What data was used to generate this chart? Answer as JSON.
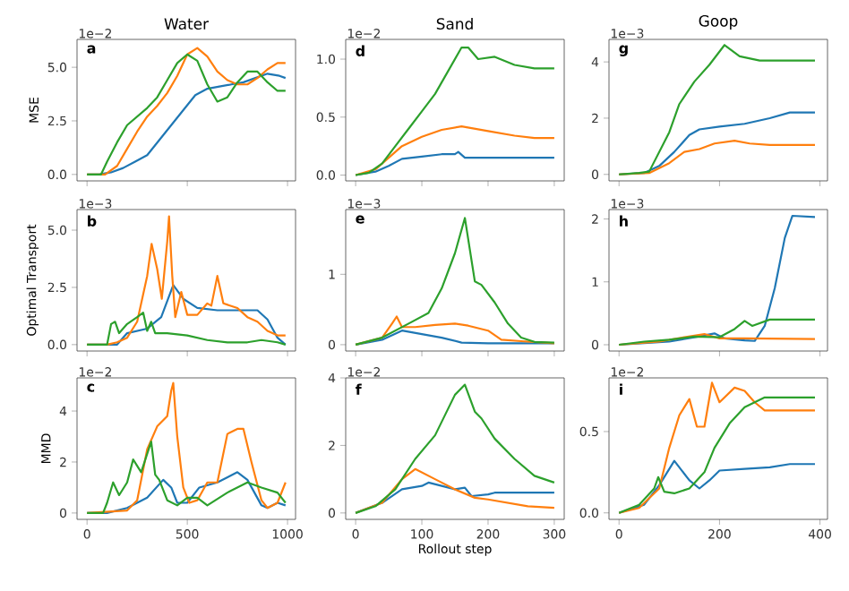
{
  "chart_data": [
    {
      "type": "line",
      "title": "Water",
      "ylabel": "MSE",
      "xlim": [
        -50,
        1040
      ],
      "ylim": [
        -0.3,
        6.3
      ],
      "xticks": [
        0,
        500,
        1000
      ],
      "yticks": [
        {
          "value": 0,
          "label": "0.0"
        },
        {
          "value": 2.5,
          "label": "2.5"
        },
        {
          "value": 5,
          "label": "5.0"
        }
      ],
      "tick_labels": "y",
      "annotations": [
        "a",
        "1e−2"
      ],
      "series": [
        {
          "color": "#1f77b4",
          "x": [
            0,
            60,
            120,
            180,
            240,
            300,
            360,
            420,
            480,
            540,
            600,
            660,
            720,
            780,
            840,
            900,
            960,
            990
          ],
          "values": [
            0,
            0,
            0.1,
            0.3,
            0.6,
            0.9,
            1.6,
            2.3,
            3.0,
            3.7,
            4.0,
            4.1,
            4.2,
            4.3,
            4.5,
            4.7,
            4.6,
            4.5
          ]
        },
        {
          "color": "#ff7f0e",
          "x": [
            0,
            90,
            150,
            200,
            250,
            300,
            350,
            400,
            450,
            500,
            550,
            600,
            650,
            700,
            750,
            800,
            850,
            900,
            950,
            990
          ],
          "values": [
            0,
            0,
            0.4,
            1.2,
            2.0,
            2.7,
            3.2,
            3.8,
            4.6,
            5.6,
            5.9,
            5.5,
            4.8,
            4.4,
            4.2,
            4.2,
            4.5,
            4.9,
            5.2,
            5.2
          ]
        },
        {
          "color": "#2ca02c",
          "x": [
            0,
            70,
            100,
            150,
            200,
            250,
            300,
            350,
            400,
            450,
            500,
            550,
            600,
            650,
            700,
            750,
            800,
            850,
            900,
            950,
            990
          ],
          "values": [
            0,
            0,
            0.6,
            1.5,
            2.3,
            2.7,
            3.1,
            3.6,
            4.4,
            5.2,
            5.6,
            5.3,
            4.2,
            3.4,
            3.6,
            4.3,
            4.8,
            4.8,
            4.3,
            3.9,
            3.9
          ]
        }
      ]
    },
    {
      "type": "line",
      "title": "Sand",
      "xlim": [
        -15,
        315
      ],
      "ylim": [
        -0.05,
        1.17
      ],
      "xticks": [
        0,
        100,
        200,
        300
      ],
      "yticks": [
        {
          "value": 0,
          "label": "0.0"
        },
        {
          "value": 0.5,
          "label": "0.5"
        },
        {
          "value": 1,
          "label": "1.0"
        }
      ],
      "tick_labels": "y",
      "annotations": [
        "d",
        "1e−2"
      ],
      "series": [
        {
          "color": "#1f77b4",
          "x": [
            0,
            30,
            50,
            70,
            100,
            130,
            150,
            155,
            165,
            200,
            250,
            300
          ],
          "values": [
            0,
            0.03,
            0.08,
            0.14,
            0.16,
            0.18,
            0.18,
            0.2,
            0.15,
            0.15,
            0.15,
            0.15
          ]
        },
        {
          "color": "#ff7f0e",
          "x": [
            0,
            30,
            50,
            70,
            100,
            130,
            160,
            200,
            240,
            270,
            300
          ],
          "values": [
            0,
            0.05,
            0.15,
            0.25,
            0.33,
            0.39,
            0.42,
            0.38,
            0.34,
            0.32,
            0.32
          ]
        },
        {
          "color": "#2ca02c",
          "x": [
            0,
            20,
            40,
            60,
            80,
            100,
            120,
            140,
            160,
            170,
            185,
            210,
            240,
            270,
            300
          ],
          "values": [
            0,
            0.02,
            0.1,
            0.25,
            0.4,
            0.55,
            0.7,
            0.9,
            1.1,
            1.1,
            1.0,
            1.02,
            0.95,
            0.92,
            0.92
          ]
        }
      ]
    },
    {
      "type": "line",
      "title": "Goop",
      "xlim": [
        -20,
        415
      ],
      "ylim": [
        -0.23,
        4.8
      ],
      "xticks": [
        0,
        200,
        400
      ],
      "yticks": [
        0,
        2,
        4
      ],
      "tick_labels": "y",
      "annotations": [
        "g",
        "1e−3"
      ],
      "series": [
        {
          "color": "#1f77b4",
          "x": [
            0,
            50,
            80,
            110,
            140,
            160,
            200,
            250,
            300,
            340,
            390
          ],
          "values": [
            0,
            0.05,
            0.3,
            0.8,
            1.4,
            1.6,
            1.7,
            1.8,
            2.0,
            2.2,
            2.2
          ]
        },
        {
          "color": "#ff7f0e",
          "x": [
            0,
            60,
            100,
            130,
            160,
            190,
            230,
            260,
            300,
            390
          ],
          "values": [
            0,
            0.05,
            0.4,
            0.8,
            0.9,
            1.1,
            1.2,
            1.1,
            1.05,
            1.05
          ]
        },
        {
          "color": "#2ca02c",
          "x": [
            0,
            40,
            60,
            80,
            100,
            120,
            150,
            180,
            210,
            240,
            280,
            390
          ],
          "values": [
            0,
            0.05,
            0.1,
            0.8,
            1.5,
            2.5,
            3.3,
            3.9,
            4.6,
            4.2,
            4.05,
            4.05
          ]
        }
      ]
    },
    {
      "type": "line",
      "ylabel": "Optimal Transport",
      "xlim": [
        -50,
        1040
      ],
      "ylim": [
        -0.28,
        5.9
      ],
      "xticks": [
        0,
        500,
        1000
      ],
      "yticks": [
        {
          "value": 0,
          "label": "0.0"
        },
        {
          "value": 2.5,
          "label": "2.5"
        },
        {
          "value": 5,
          "label": "5.0"
        }
      ],
      "tick_labels": "y",
      "annotations": [
        "b",
        "1e−3"
      ],
      "series": [
        {
          "color": "#1f77b4",
          "x": [
            0,
            150,
            200,
            300,
            370,
            430,
            480,
            550,
            650,
            750,
            850,
            900,
            950,
            990
          ],
          "values": [
            0,
            0,
            0.5,
            0.7,
            1.2,
            2.6,
            2.0,
            1.6,
            1.5,
            1.5,
            1.5,
            1.1,
            0.3,
            0
          ]
        },
        {
          "color": "#ff7f0e",
          "x": [
            0,
            100,
            150,
            200,
            250,
            300,
            322,
            350,
            373,
            400,
            409,
            425,
            440,
            470,
            500,
            550,
            600,
            620,
            650,
            680,
            750,
            800,
            850,
            900,
            950,
            990
          ],
          "values": [
            0,
            0,
            0.1,
            0.3,
            1.0,
            3.0,
            4.4,
            3.3,
            2.0,
            4.5,
            5.6,
            3.0,
            1.2,
            2.3,
            1.3,
            1.3,
            1.8,
            1.7,
            3.0,
            1.8,
            1.6,
            1.2,
            1.0,
            0.6,
            0.4,
            0.4
          ]
        },
        {
          "color": "#2ca02c",
          "x": [
            0,
            100,
            120,
            140,
            160,
            200,
            250,
            280,
            300,
            320,
            340,
            400,
            500,
            600,
            700,
            800,
            870,
            950,
            990
          ],
          "values": [
            0,
            0,
            0.9,
            1.0,
            0.5,
            0.9,
            1.2,
            1.4,
            0.6,
            1.0,
            0.5,
            0.5,
            0.4,
            0.2,
            0.1,
            0.1,
            0.2,
            0.1,
            0
          ]
        }
      ]
    },
    {
      "type": "line",
      "xlim": [
        -15,
        315
      ],
      "ylim": [
        -0.09,
        1.92
      ],
      "xticks": [
        0,
        100,
        200,
        300
      ],
      "yticks": [
        0,
        1
      ],
      "tick_labels": "y",
      "annotations": [
        "e",
        "1e−3"
      ],
      "series": [
        {
          "color": "#1f77b4",
          "x": [
            0,
            40,
            70,
            100,
            130,
            160,
            200,
            300
          ],
          "values": [
            0,
            0.07,
            0.2,
            0.15,
            0.1,
            0.03,
            0.02,
            0.02
          ]
        },
        {
          "color": "#ff7f0e",
          "x": [
            0,
            40,
            55,
            62,
            70,
            90,
            120,
            150,
            170,
            200,
            220,
            250,
            300
          ],
          "values": [
            0,
            0.1,
            0.3,
            0.4,
            0.25,
            0.25,
            0.28,
            0.3,
            0.27,
            0.2,
            0.07,
            0.05,
            0.02
          ]
        },
        {
          "color": "#2ca02c",
          "x": [
            0,
            40,
            80,
            110,
            130,
            150,
            165,
            180,
            190,
            210,
            230,
            250,
            270,
            300
          ],
          "values": [
            0,
            0.1,
            0.3,
            0.45,
            0.8,
            1.3,
            1.8,
            0.9,
            0.85,
            0.6,
            0.3,
            0.1,
            0.04,
            0.03
          ]
        }
      ]
    },
    {
      "type": "line",
      "xlim": [
        -20,
        415
      ],
      "ylim": [
        -0.1,
        2.15
      ],
      "xticks": [
        0,
        200,
        400
      ],
      "yticks": [
        0,
        1,
        2
      ],
      "tick_labels": "y",
      "annotations": [
        "h",
        "1e−3"
      ],
      "series": [
        {
          "color": "#1f77b4",
          "x": [
            0,
            100,
            150,
            190,
            210,
            250,
            270,
            290,
            310,
            330,
            345,
            390
          ],
          "values": [
            0,
            0.05,
            0.12,
            0.18,
            0.1,
            0.07,
            0.06,
            0.3,
            0.9,
            1.7,
            2.05,
            2.03
          ]
        },
        {
          "color": "#ff7f0e",
          "x": [
            0,
            80,
            130,
            170,
            200,
            250,
            390
          ],
          "values": [
            0,
            0.05,
            0.12,
            0.17,
            0.1,
            0.1,
            0.09
          ]
        },
        {
          "color": "#2ca02c",
          "x": [
            0,
            50,
            100,
            150,
            200,
            230,
            250,
            265,
            300,
            390
          ],
          "values": [
            0,
            0.05,
            0.08,
            0.13,
            0.12,
            0.25,
            0.38,
            0.3,
            0.4,
            0.4
          ]
        }
      ]
    },
    {
      "type": "line",
      "ylabel": "MMD",
      "xlim": [
        -50,
        1040
      ],
      "ylim": [
        -0.25,
        5.3
      ],
      "xticks": [
        0,
        500,
        1000
      ],
      "yticks": [
        0,
        2,
        4
      ],
      "annotations": [
        "c",
        "1e−2"
      ],
      "series": [
        {
          "color": "#1f77b4",
          "x": [
            0,
            100,
            200,
            300,
            380,
            420,
            450,
            500,
            560,
            650,
            750,
            800,
            870,
            900,
            950,
            990
          ],
          "values": [
            0,
            0,
            0.2,
            0.6,
            1.3,
            1.0,
            0.4,
            0.4,
            1.0,
            1.2,
            1.6,
            1.3,
            0.3,
            0.2,
            0.4,
            0.3
          ]
        },
        {
          "color": "#ff7f0e",
          "x": [
            0,
            200,
            250,
            300,
            350,
            400,
            420,
            430,
            450,
            480,
            510,
            550,
            600,
            650,
            700,
            750,
            780,
            820,
            870,
            900,
            950,
            990
          ],
          "values": [
            0,
            0.1,
            0.5,
            2.5,
            3.4,
            3.8,
            4.8,
            5.1,
            3.0,
            1.0,
            0.4,
            0.5,
            1.2,
            1.2,
            3.1,
            3.3,
            3.3,
            2.0,
            0.5,
            0.2,
            0.4,
            1.2
          ]
        },
        {
          "color": "#2ca02c",
          "x": [
            0,
            80,
            100,
            130,
            160,
            200,
            230,
            270,
            320,
            340,
            360,
            400,
            450,
            500,
            550,
            600,
            700,
            800,
            870,
            950,
            990
          ],
          "values": [
            0,
            0,
            0.4,
            1.2,
            0.7,
            1.2,
            2.1,
            1.6,
            2.8,
            1.5,
            1.3,
            0.5,
            0.3,
            0.6,
            0.6,
            0.3,
            0.8,
            1.2,
            1.0,
            0.8,
            0.4
          ]
        }
      ]
    },
    {
      "type": "line",
      "xlabel": "Rollout step",
      "xlim": [
        -15,
        315
      ],
      "ylim": [
        -0.19,
        4.0
      ],
      "xticks": [
        0,
        100,
        200,
        300
      ],
      "yticks": [
        0,
        2,
        4
      ],
      "annotations": [
        "f",
        "1e−2"
      ],
      "series": [
        {
          "color": "#1f77b4",
          "x": [
            0,
            40,
            70,
            100,
            110,
            130,
            150,
            165,
            175,
            200,
            210,
            250,
            300
          ],
          "values": [
            0,
            0.3,
            0.7,
            0.8,
            0.9,
            0.8,
            0.7,
            0.75,
            0.5,
            0.55,
            0.6,
            0.6,
            0.6
          ]
        },
        {
          "color": "#ff7f0e",
          "x": [
            0,
            40,
            70,
            90,
            120,
            150,
            180,
            200,
            230,
            260,
            300
          ],
          "values": [
            0,
            0.3,
            1.0,
            1.3,
            1.0,
            0.7,
            0.45,
            0.4,
            0.3,
            0.2,
            0.15
          ]
        },
        {
          "color": "#2ca02c",
          "x": [
            0,
            30,
            60,
            90,
            120,
            150,
            165,
            180,
            190,
            210,
            240,
            270,
            300
          ],
          "values": [
            0,
            0.2,
            0.7,
            1.6,
            2.3,
            3.5,
            3.8,
            3.0,
            2.8,
            2.2,
            1.6,
            1.1,
            0.9
          ]
        }
      ]
    },
    {
      "type": "line",
      "xlim": [
        -20,
        415
      ],
      "ylim": [
        -0.04,
        0.83
      ],
      "xticks": [
        0,
        200,
        400
      ],
      "yticks": [
        {
          "value": 0,
          "label": "0.0"
        },
        {
          "value": 0.5,
          "label": "0.5"
        }
      ],
      "annotations": [
        "i",
        "1e−2"
      ],
      "series": [
        {
          "color": "#1f77b4",
          "x": [
            0,
            50,
            80,
            110,
            140,
            160,
            180,
            200,
            250,
            300,
            340,
            390
          ],
          "values": [
            0,
            0.05,
            0.17,
            0.32,
            0.2,
            0.15,
            0.2,
            0.26,
            0.27,
            0.28,
            0.3,
            0.3
          ]
        },
        {
          "color": "#ff7f0e",
          "x": [
            0,
            40,
            80,
            100,
            120,
            140,
            155,
            170,
            185,
            200,
            230,
            250,
            270,
            290,
            390
          ],
          "values": [
            0,
            0.03,
            0.15,
            0.4,
            0.6,
            0.7,
            0.53,
            0.53,
            0.8,
            0.68,
            0.77,
            0.75,
            0.68,
            0.63,
            0.63
          ]
        },
        {
          "color": "#2ca02c",
          "x": [
            0,
            40,
            70,
            78,
            90,
            110,
            140,
            170,
            190,
            220,
            250,
            290,
            390
          ],
          "values": [
            0,
            0.05,
            0.15,
            0.22,
            0.13,
            0.12,
            0.15,
            0.25,
            0.4,
            0.55,
            0.65,
            0.71,
            0.71
          ]
        }
      ]
    }
  ]
}
